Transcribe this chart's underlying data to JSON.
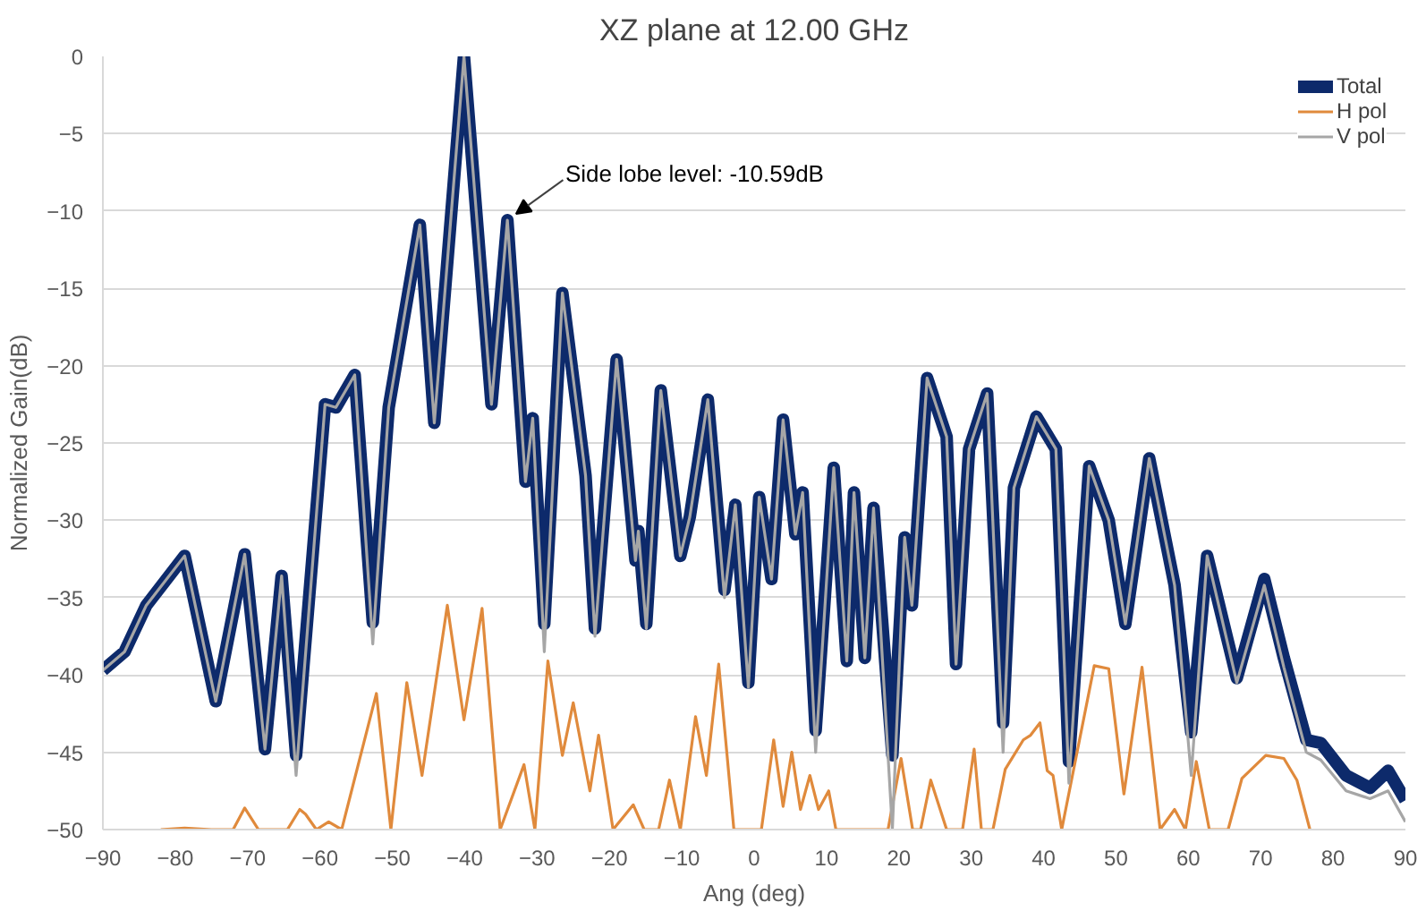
{
  "chart_data": {
    "type": "line",
    "title": "XZ plane at 12.00 GHz",
    "xlabel": "Ang (deg)",
    "ylabel": "Normalized Gain(dB)",
    "xlim": [
      -90,
      90
    ],
    "xticks": [
      -90,
      -80,
      -70,
      -60,
      -50,
      -40,
      -30,
      -20,
      -10,
      0,
      10,
      20,
      30,
      40,
      50,
      60,
      70,
      80,
      90
    ],
    "ylim": [
      -50,
      0
    ],
    "yticks": [
      -50,
      -45,
      -40,
      -35,
      -30,
      -25,
      -20,
      -15,
      -10,
      -5,
      0
    ],
    "grid": "y",
    "legend": "top right",
    "annotations": [
      {
        "text": "Side lobe level: -10.59dB",
        "x": -34.1,
        "y": -10.59
      }
    ],
    "series": [
      {
        "name": "Total",
        "color": "#0d2a6b",
        "x": [
          -90,
          -87,
          -84,
          -78.7,
          -74.4,
          -70.4,
          -67.6,
          -65.3,
          -63.3,
          -59.3,
          -57.8,
          -55.2,
          -52.7,
          -50.5,
          -46.2,
          -44.2,
          -40.1,
          -36.3,
          -34.1,
          -31.6,
          -30.6,
          -29.0,
          -26.5,
          -23.3,
          -22.0,
          -19.0,
          -16.4,
          -16.0,
          -14.9,
          -12.9,
          -10.2,
          -8.9,
          -6.4,
          -4.1,
          -2.6,
          -0.8,
          0.7,
          2.4,
          4.0,
          5.7,
          6.7,
          8.5,
          11.0,
          12.8,
          13.8,
          15.3,
          16.5,
          19.1,
          20.8,
          21.8,
          23.9,
          26.6,
          27.9,
          29.7,
          32.2,
          34.4,
          35.9,
          39.0,
          41.7,
          43.5,
          46.3,
          49.0,
          51.3,
          54.6,
          58.1,
          60.4,
          62.6,
          66.7,
          70.5,
          73.2,
          76.3,
          78.3,
          81.8,
          85.1,
          87.6,
          90
        ],
        "values": [
          -39.7,
          -38.5,
          -35.5,
          -32.3,
          -41.7,
          -32.2,
          -44.8,
          -33.6,
          -45.2,
          -22.5,
          -22.7,
          -20.6,
          -36.6,
          -22.7,
          -10.9,
          -23.7,
          0,
          -22.5,
          -10.59,
          -27.5,
          -23.4,
          -36.7,
          -15.3,
          -27.1,
          -37.0,
          -19.6,
          -32.6,
          -30.7,
          -36.7,
          -21.6,
          -32.3,
          -29.8,
          -22.2,
          -34.5,
          -29.0,
          -40.5,
          -28.5,
          -33.8,
          -23.5,
          -30.9,
          -28.2,
          -43.6,
          -26.6,
          -39.1,
          -28.2,
          -38.9,
          -29.2,
          -45.2,
          -31.1,
          -35.5,
          -20.8,
          -24.6,
          -39.3,
          -25.4,
          -21.8,
          -43.1,
          -27.9,
          -23.3,
          -25.4,
          -45.6,
          -26.5,
          -30.0,
          -36.7,
          -26.0,
          -34.2,
          -43.7,
          -32.3,
          -40.2,
          -33.8,
          -38.9,
          -44.2,
          -44.4,
          -46.5,
          -47.3,
          -46.2,
          -48.1
        ]
      },
      {
        "name": "H pol",
        "color": "#e08a3c",
        "x": [
          -82,
          -78.7,
          -75,
          -72,
          -70.4,
          -68.5,
          -64.5,
          -62.8,
          -62,
          -60.5,
          -58.8,
          -57,
          -52.2,
          -50.2,
          -48,
          -45.9,
          -42.4,
          -40.1,
          -37.6,
          -35.1,
          -31.8,
          -30.3,
          -28.5,
          -26.5,
          -25.0,
          -22.7,
          -21.5,
          -19.5,
          -16.7,
          -15.2,
          -13.2,
          -11.7,
          -10.2,
          -8.1,
          -6.6,
          -4.9,
          -2.8,
          1.0,
          2.7,
          4.0,
          5.2,
          6.4,
          7.7,
          8.9,
          10.3,
          11.3,
          18.5,
          20.3,
          21.9,
          23.0,
          24.4,
          26.6,
          28.8,
          30.4,
          31.4,
          33.0,
          34.7,
          37.2,
          38.2,
          39.5,
          40.5,
          41.3,
          42.5,
          47.0,
          49.0,
          51.1,
          53.6,
          56.1,
          58.1,
          59.6,
          61.1,
          62.9,
          65.5,
          67.4,
          70.7,
          73.2,
          75.0,
          76.8
        ],
        "values": [
          -50,
          -49.9,
          -50,
          -50,
          -48.6,
          -50,
          -50,
          -48.7,
          -49,
          -50,
          -49.5,
          -50,
          -41.2,
          -50,
          -40.5,
          -46.5,
          -35.5,
          -42.9,
          -35.7,
          -50,
          -45.8,
          -50,
          -39.1,
          -45.2,
          -41.8,
          -47.5,
          -43.9,
          -50,
          -48.4,
          -50,
          -50,
          -46.8,
          -50,
          -42.7,
          -46.5,
          -39.3,
          -50,
          -50,
          -44.2,
          -48.5,
          -45.0,
          -48.7,
          -46.5,
          -48.7,
          -47.5,
          -50,
          -50,
          -45.4,
          -50,
          -50,
          -46.8,
          -50,
          -50,
          -44.8,
          -50,
          -50,
          -46.1,
          -44.2,
          -43.9,
          -43.1,
          -46.2,
          -46.5,
          -50,
          -39.4,
          -39.6,
          -47.7,
          -39.5,
          -50,
          -48.7,
          -50,
          -45.6,
          -50,
          -50,
          -46.7,
          -45.2,
          -45.4,
          -46.8,
          -50
        ]
      },
      {
        "name": "V pol",
        "color": "#a6a6a6",
        "x": [
          -90,
          -87,
          -84,
          -78.7,
          -74.4,
          -70.4,
          -67.6,
          -65.3,
          -63.3,
          -59.3,
          -57.8,
          -55.2,
          -52.7,
          -50.5,
          -46.2,
          -44.2,
          -40.1,
          -36.3,
          -34.1,
          -31.6,
          -30.6,
          -29.0,
          -26.5,
          -23.3,
          -22.0,
          -19.0,
          -16.4,
          -16.0,
          -14.9,
          -12.9,
          -10.2,
          -8.9,
          -6.4,
          -4.1,
          -2.6,
          -0.8,
          0.7,
          2.4,
          4.0,
          5.7,
          6.7,
          8.5,
          11.0,
          12.8,
          13.8,
          15.3,
          16.5,
          19.1,
          20.8,
          21.8,
          23.9,
          26.6,
          27.9,
          29.7,
          32.2,
          34.4,
          35.9,
          39.0,
          41.7,
          43.5,
          46.3,
          49.0,
          51.3,
          54.6,
          58.1,
          60.4,
          62.6,
          66.7,
          70.5,
          73.2,
          76.3,
          78.3,
          81.8,
          85.1,
          87.6,
          90
        ],
        "values": [
          -39.7,
          -38.5,
          -35.5,
          -32.3,
          -41.7,
          -32.2,
          -44.8,
          -33.6,
          -46.5,
          -22.5,
          -22.7,
          -20.6,
          -38.0,
          -22.7,
          -10.9,
          -23.7,
          0,
          -22.5,
          -10.59,
          -27.5,
          -23.4,
          -38.5,
          -15.3,
          -27.1,
          -37.5,
          -19.6,
          -32.6,
          -30.7,
          -37.0,
          -21.6,
          -32.3,
          -29.8,
          -22.2,
          -35.0,
          -29.0,
          -40.8,
          -28.5,
          -33.8,
          -23.5,
          -30.9,
          -28.2,
          -45.0,
          -26.6,
          -39.1,
          -28.2,
          -38.9,
          -29.2,
          -50,
          -31.1,
          -35.5,
          -20.8,
          -24.6,
          -39.3,
          -25.4,
          -21.8,
          -45.0,
          -27.9,
          -23.3,
          -25.4,
          -47.0,
          -26.5,
          -30.0,
          -36.7,
          -26.0,
          -34.2,
          -46.5,
          -32.3,
          -40.5,
          -34.2,
          -39.5,
          -45.0,
          -45.5,
          -47.5,
          -48.0,
          -47.5,
          -49.5
        ]
      }
    ]
  }
}
